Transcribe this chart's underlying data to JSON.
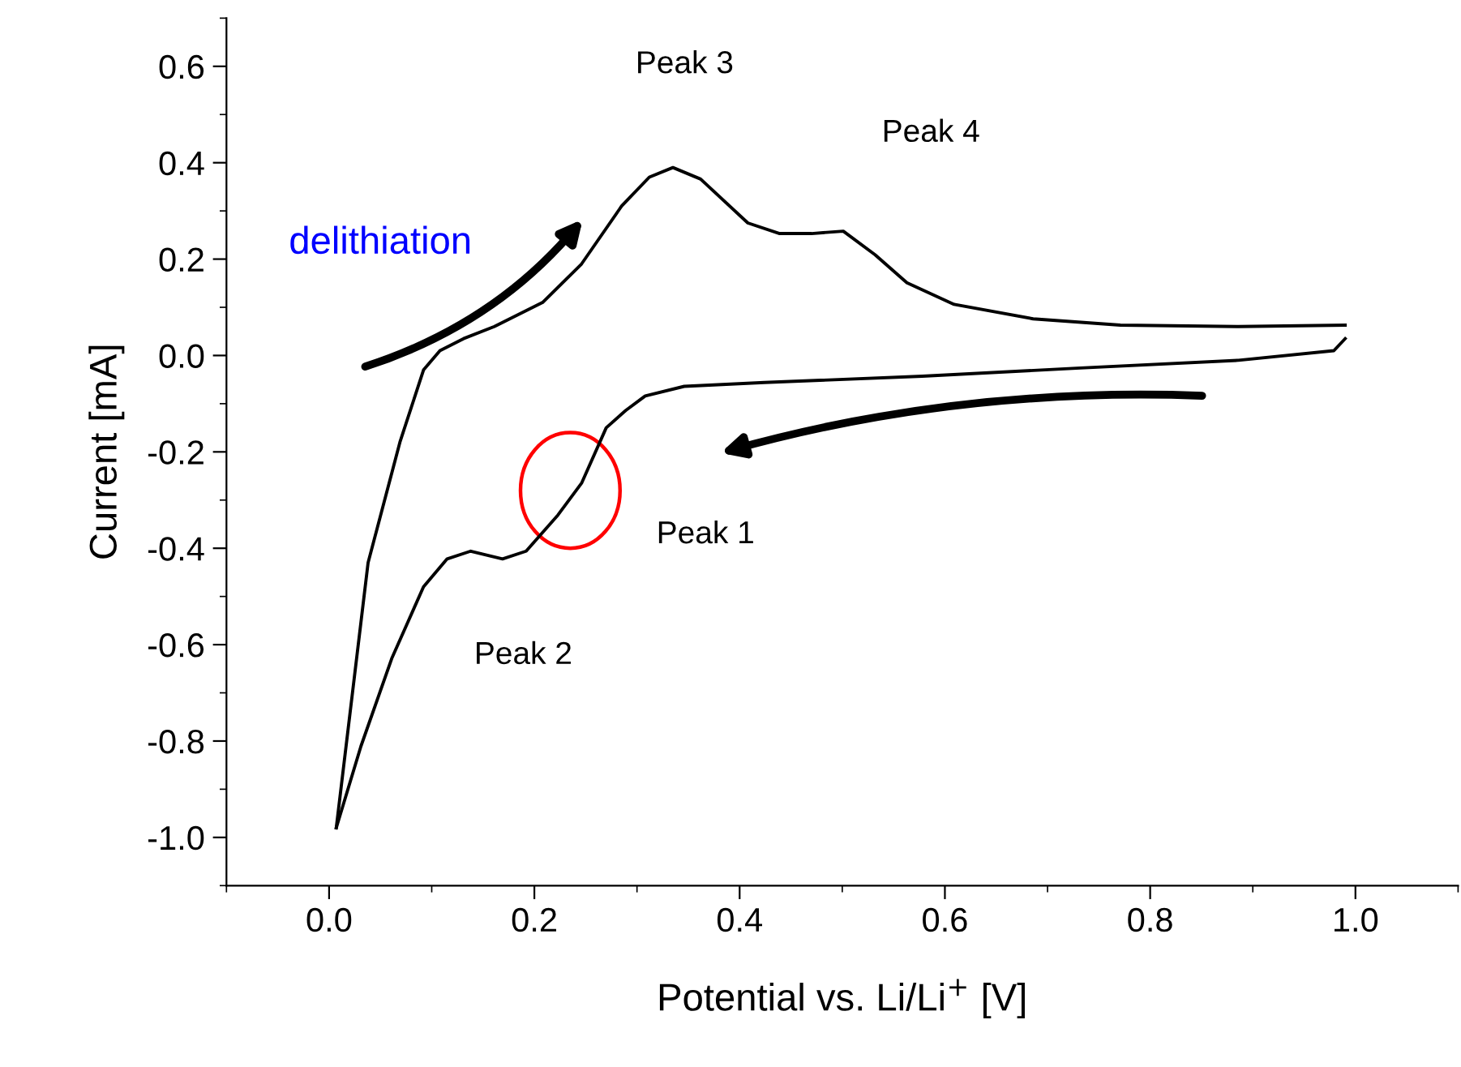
{
  "chart_data": {
    "type": "line",
    "xlabel": "Potential vs. Li/Li$^{+}$ [V]",
    "ylabel": "Current [mA]",
    "xlim": [
      -0.1,
      1.1
    ],
    "ylim": [
      -1.1,
      0.7
    ],
    "xticks": [
      {
        "value": 0,
        "label": "0.0"
      },
      0.2,
      0.4,
      0.6,
      0.8,
      {
        "value": 1,
        "label": "1.0"
      }
    ],
    "yticks": [
      {
        "value": -1,
        "label": "-1.0"
      },
      -0.8,
      -0.6,
      -0.4,
      -0.2,
      {
        "value": 0,
        "label": "0.0"
      },
      0.2,
      0.4,
      0.6
    ],
    "grid": false,
    "legend": false,
    "marker": "none",
    "line_style": "solid",
    "series": [
      {
        "color": "#000000",
        "x": [
          0.007,
          0.038,
          0.069,
          0.092,
          0.108,
          0.131,
          0.161,
          0.208,
          0.246,
          0.285,
          0.312,
          0.335,
          0.362,
          0.408,
          0.439,
          0.47,
          0.501,
          0.532,
          0.563,
          0.609,
          0.686,
          0.771,
          0.886,
          0.99
        ],
        "values": [
          -0.98,
          -0.43,
          -0.18,
          -0.03,
          0.01,
          0.035,
          0.06,
          0.11,
          0.19,
          0.31,
          0.37,
          0.39,
          0.366,
          0.275,
          0.253,
          0.253,
          0.258,
          0.209,
          0.151,
          0.106,
          0.076,
          0.063,
          0.06,
          0.063
        ]
      },
      {
        "color": "#000000",
        "x": [
          0.007,
          0.031,
          0.061,
          0.092,
          0.115,
          0.138,
          0.169,
          0.192,
          0.223,
          0.246,
          0.27,
          0.289,
          0.308,
          0.346,
          0.424,
          0.578,
          0.732,
          0.886,
          0.979,
          0.99
        ],
        "values": [
          -0.98,
          -0.811,
          -0.629,
          -0.48,
          -0.422,
          -0.406,
          -0.422,
          -0.406,
          -0.331,
          -0.265,
          -0.15,
          -0.114,
          -0.084,
          -0.064,
          -0.056,
          -0.043,
          -0.026,
          -0.01,
          0.01,
          0.035
        ]
      }
    ],
    "annotations": [
      "Peak 1",
      "Peak 2",
      "Peak 3",
      "Peak 4",
      "delithiation"
    ]
  }
}
